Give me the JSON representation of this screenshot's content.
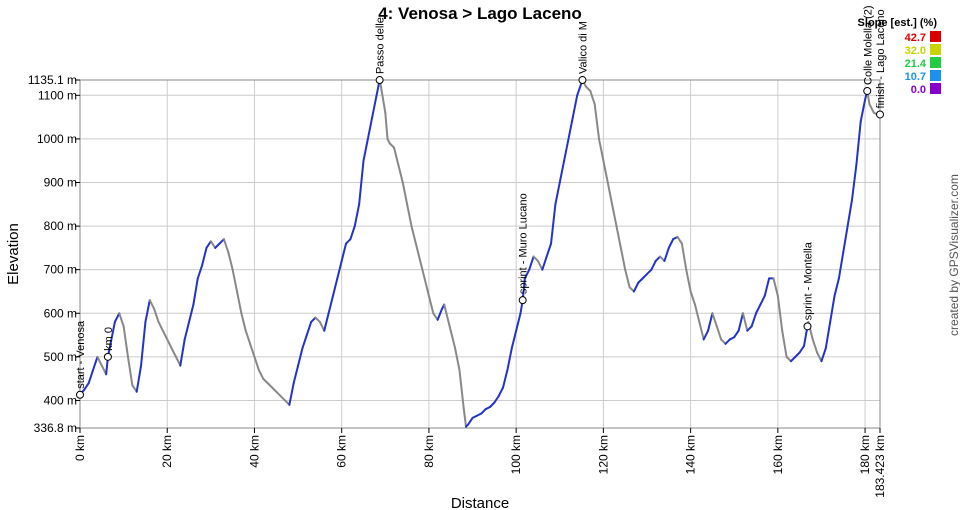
{
  "chart_data": {
    "type": "line",
    "title": "4: Venosa > Lago Laceno",
    "xlabel": "Distance",
    "ylabel": "Elevation",
    "xlim": [
      0,
      183.423
    ],
    "ylim": [
      336.8,
      1135.1
    ],
    "x_unit": "km",
    "y_unit": "m",
    "x_ticks": [
      {
        "v": 0,
        "label": "0 km"
      },
      {
        "v": 20,
        "label": "20 km"
      },
      {
        "v": 40,
        "label": "40 km"
      },
      {
        "v": 60,
        "label": "60 km"
      },
      {
        "v": 80,
        "label": "80 km"
      },
      {
        "v": 100,
        "label": "100 km"
      },
      {
        "v": 120,
        "label": "120 km"
      },
      {
        "v": 140,
        "label": "140 km"
      },
      {
        "v": 160,
        "label": "160 km"
      },
      {
        "v": 180,
        "label": "180 km"
      },
      {
        "v": 183.423,
        "label": "183.423 km"
      }
    ],
    "y_ticks": [
      {
        "v": 336.8,
        "label": "336.8 m"
      },
      {
        "v": 400,
        "label": "400 m"
      },
      {
        "v": 500,
        "label": "500 m"
      },
      {
        "v": 600,
        "label": "600 m"
      },
      {
        "v": 700,
        "label": "700 m"
      },
      {
        "v": 800,
        "label": "800 m"
      },
      {
        "v": 900,
        "label": "900 m"
      },
      {
        "v": 1000,
        "label": "1000 m"
      },
      {
        "v": 1100,
        "label": "1100 m"
      },
      {
        "v": 1135.1,
        "label": "1135.1 m"
      }
    ],
    "grid": true,
    "legend": {
      "title": "Slope [est.] (%)",
      "placement": "top-right",
      "entries": [
        {
          "label": "42.7",
          "color": "#dd0000"
        },
        {
          "label": "32.0",
          "color": "#c8d400"
        },
        {
          "label": "21.4",
          "color": "#22cc44"
        },
        {
          "label": "10.7",
          "color": "#1e90ee"
        },
        {
          "label": "0.0",
          "color": "#8800cc"
        }
      ]
    },
    "series": [
      {
        "color": "#2233cc",
        "points": [
          [
            0,
            413
          ],
          [
            1,
            425
          ],
          [
            2,
            440
          ],
          [
            3,
            470
          ],
          [
            4,
            500
          ],
          [
            5,
            480
          ],
          [
            6,
            460
          ],
          [
            6.4,
            500
          ],
          [
            7,
            530
          ],
          [
            8,
            580
          ],
          [
            9,
            600
          ],
          [
            10,
            570
          ],
          [
            11,
            500
          ],
          [
            12,
            435
          ],
          [
            13,
            420
          ],
          [
            14,
            480
          ],
          [
            15,
            580
          ],
          [
            16,
            630
          ],
          [
            17,
            610
          ],
          [
            18,
            580
          ],
          [
            19,
            560
          ],
          [
            20,
            540
          ],
          [
            21,
            520
          ],
          [
            22,
            500
          ],
          [
            23,
            480
          ],
          [
            24,
            540
          ],
          [
            25,
            580
          ],
          [
            26,
            620
          ],
          [
            27,
            680
          ],
          [
            28,
            710
          ],
          [
            29,
            750
          ],
          [
            30,
            765
          ],
          [
            31,
            750
          ],
          [
            32,
            760
          ],
          [
            33,
            770
          ],
          [
            34,
            740
          ],
          [
            35,
            700
          ],
          [
            36,
            650
          ],
          [
            37,
            600
          ],
          [
            38,
            560
          ],
          [
            39,
            530
          ],
          [
            40,
            500
          ],
          [
            41,
            470
          ],
          [
            42,
            450
          ],
          [
            43,
            440
          ],
          [
            44,
            430
          ],
          [
            45,
            420
          ],
          [
            46,
            410
          ],
          [
            47,
            400
          ],
          [
            48,
            390
          ],
          [
            49,
            440
          ],
          [
            50,
            480
          ],
          [
            51,
            520
          ],
          [
            52,
            550
          ],
          [
            53,
            580
          ],
          [
            54,
            590
          ],
          [
            55,
            580
          ],
          [
            56,
            560
          ],
          [
            57,
            600
          ],
          [
            58,
            640
          ],
          [
            59,
            680
          ],
          [
            60,
            720
          ],
          [
            61,
            760
          ],
          [
            62,
            770
          ],
          [
            63,
            800
          ],
          [
            64,
            850
          ],
          [
            65,
            950
          ],
          [
            66,
            1000
          ],
          [
            67,
            1050
          ],
          [
            68,
            1100
          ],
          [
            68.7,
            1135
          ],
          [
            69,
            1120
          ],
          [
            70,
            1060
          ],
          [
            70.5,
            1000
          ],
          [
            71,
            990
          ],
          [
            72,
            980
          ],
          [
            73,
            940
          ],
          [
            74,
            900
          ],
          [
            75,
            850
          ],
          [
            76,
            800
          ],
          [
            77,
            760
          ],
          [
            78,
            720
          ],
          [
            79,
            680
          ],
          [
            80,
            640
          ],
          [
            81,
            600
          ],
          [
            82,
            585
          ],
          [
            83,
            610
          ],
          [
            83.5,
            620
          ],
          [
            84,
            600
          ],
          [
            85,
            560
          ],
          [
            86,
            520
          ],
          [
            87,
            470
          ],
          [
            88,
            380
          ],
          [
            88.5,
            340
          ],
          [
            89,
            345
          ],
          [
            90,
            360
          ],
          [
            91,
            365
          ],
          [
            92,
            370
          ],
          [
            93,
            380
          ],
          [
            94,
            385
          ],
          [
            95,
            395
          ],
          [
            96,
            410
          ],
          [
            97,
            430
          ],
          [
            98,
            470
          ],
          [
            99,
            520
          ],
          [
            100,
            560
          ],
          [
            101,
            600
          ],
          [
            101.5,
            630
          ],
          [
            102,
            680
          ],
          [
            103,
            700
          ],
          [
            104,
            730
          ],
          [
            105,
            720
          ],
          [
            106,
            700
          ],
          [
            107,
            730
          ],
          [
            108,
            760
          ],
          [
            109,
            850
          ],
          [
            110,
            900
          ],
          [
            111,
            950
          ],
          [
            112,
            1000
          ],
          [
            113,
            1050
          ],
          [
            114,
            1100
          ],
          [
            115.2,
            1135
          ],
          [
            116,
            1120
          ],
          [
            117,
            1110
          ],
          [
            118,
            1080
          ],
          [
            119,
            1000
          ],
          [
            120,
            950
          ],
          [
            121,
            900
          ],
          [
            122,
            850
          ],
          [
            123,
            800
          ],
          [
            124,
            750
          ],
          [
            125,
            700
          ],
          [
            126,
            660
          ],
          [
            127,
            650
          ],
          [
            128,
            670
          ],
          [
            129,
            680
          ],
          [
            130,
            690
          ],
          [
            131,
            700
          ],
          [
            132,
            720
          ],
          [
            133,
            730
          ],
          [
            134,
            720
          ],
          [
            135,
            750
          ],
          [
            136,
            770
          ],
          [
            137,
            775
          ],
          [
            138,
            760
          ],
          [
            139,
            700
          ],
          [
            140,
            650
          ],
          [
            141,
            620
          ],
          [
            142,
            580
          ],
          [
            143,
            540
          ],
          [
            144,
            560
          ],
          [
            145,
            600
          ],
          [
            146,
            570
          ],
          [
            147,
            540
          ],
          [
            148,
            530
          ],
          [
            149,
            540
          ],
          [
            150,
            545
          ],
          [
            151,
            560
          ],
          [
            152,
            600
          ],
          [
            153,
            560
          ],
          [
            154,
            570
          ],
          [
            155,
            600
          ],
          [
            156,
            620
          ],
          [
            157,
            640
          ],
          [
            158,
            680
          ],
          [
            159,
            680
          ],
          [
            160,
            640
          ],
          [
            161,
            560
          ],
          [
            162,
            500
          ],
          [
            163,
            490
          ],
          [
            164,
            500
          ],
          [
            165,
            510
          ],
          [
            166,
            525
          ],
          [
            166.8,
            570
          ],
          [
            167,
            580
          ],
          [
            168,
            540
          ],
          [
            169,
            510
          ],
          [
            170,
            490
          ],
          [
            171,
            520
          ],
          [
            172,
            580
          ],
          [
            173,
            640
          ],
          [
            174,
            680
          ],
          [
            175,
            740
          ],
          [
            176,
            800
          ],
          [
            177,
            860
          ],
          [
            178,
            940
          ],
          [
            179,
            1040
          ],
          [
            180,
            1090
          ],
          [
            180.5,
            1110
          ],
          [
            181,
            1080
          ],
          [
            182,
            1060
          ],
          [
            183,
            1055
          ],
          [
            183.423,
            1056
          ]
        ]
      }
    ],
    "waypoints": [
      {
        "km": 0,
        "ele": 413,
        "label": "start - Venosa"
      },
      {
        "km": 6.4,
        "ele": 500,
        "label": "km 0"
      },
      {
        "km": 68.7,
        "ele": 1135,
        "label": "Passo delle"
      },
      {
        "km": 101.5,
        "ele": 630,
        "label": "sprint - Muro Lucano"
      },
      {
        "km": 115.2,
        "ele": 1135,
        "label": "Valico di M"
      },
      {
        "km": 166.8,
        "ele": 570,
        "label": "sprint - Montella"
      },
      {
        "km": 180.5,
        "ele": 1110,
        "label": "Colle Molella (2)"
      },
      {
        "km": 183.423,
        "ele": 1056,
        "label": "finish - Lago Laceno"
      }
    ]
  },
  "credit": "created by GPSVisualizer.com"
}
